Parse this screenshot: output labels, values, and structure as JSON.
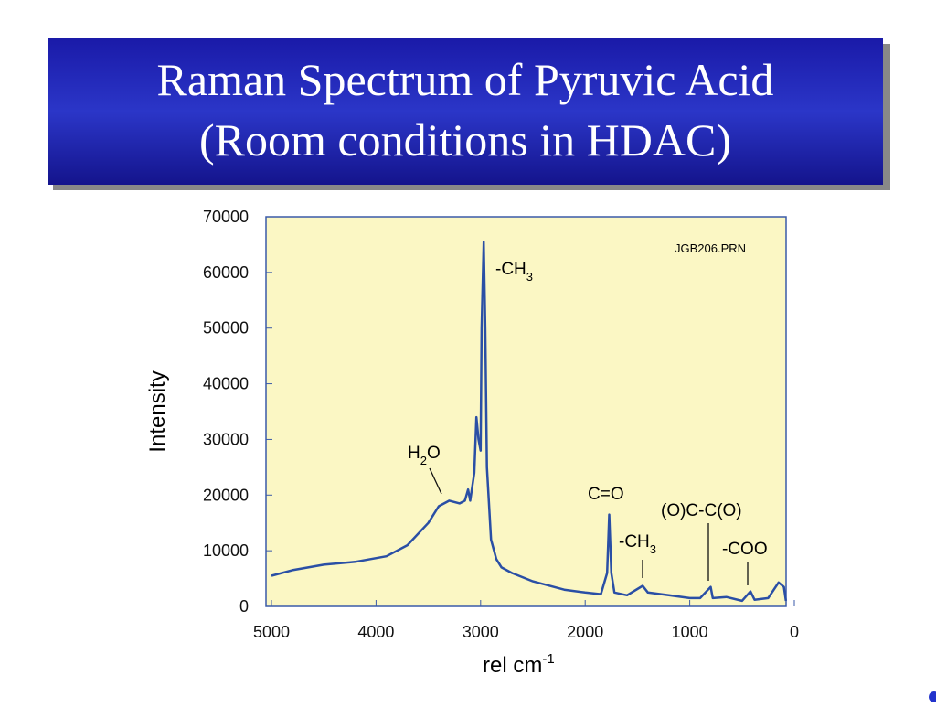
{
  "slide_title": [
    "Raman Spectrum of Pyruvic Acid",
    "(Room conditions in HDAC)"
  ],
  "chart_data": {
    "type": "line",
    "file_label": "JGB206.PRN",
    "y_label": "Intensity",
    "x_label": {
      "text": "rel cm",
      "sup": "-1"
    },
    "xlim": [
      5000,
      0
    ],
    "xticks": [
      5000,
      4000,
      3000,
      2000,
      1000,
      0
    ],
    "ylim": [
      0,
      70000
    ],
    "yticks": [
      0,
      10000,
      20000,
      30000,
      40000,
      50000,
      60000,
      70000
    ],
    "annotations": [
      [
        "H",
        "2",
        "O"
      ],
      [
        "-CH",
        "3"
      ],
      [
        "C=O"
      ],
      [
        "-CH",
        "3"
      ],
      [
        "(O)C-C(O)"
      ],
      [
        "-COO"
      ]
    ],
    "series": [
      {
        "color": "#2a4fa5",
        "x": [
          5000,
          4800,
          4500,
          4200,
          3900,
          3700,
          3500,
          3400,
          3300,
          3200,
          3150,
          3120,
          3100,
          3060,
          3040,
          3020,
          3000,
          2990,
          2970,
          2955,
          2940,
          2900,
          2850,
          2800,
          2700,
          2500,
          2200,
          2000,
          1850,
          1790,
          1770,
          1750,
          1720,
          1600,
          1450,
          1400,
          1200,
          1000,
          900,
          800,
          780,
          650,
          500,
          420,
          380,
          250,
          150,
          100,
          80
        ],
        "values": [
          5500,
          6500,
          7500,
          8000,
          9000,
          11000,
          15000,
          18000,
          19000,
          18500,
          19000,
          21000,
          19000,
          24000,
          34000,
          30000,
          28000,
          50000,
          65500,
          50000,
          25000,
          12000,
          8500,
          7000,
          6000,
          4500,
          3000,
          2500,
          2200,
          6000,
          16500,
          6000,
          2500,
          2000,
          3700,
          2500,
          2000,
          1500,
          1500,
          3500,
          1500,
          1700,
          1000,
          2700,
          1200,
          1500,
          4300,
          3500,
          1000
        ]
      }
    ]
  }
}
